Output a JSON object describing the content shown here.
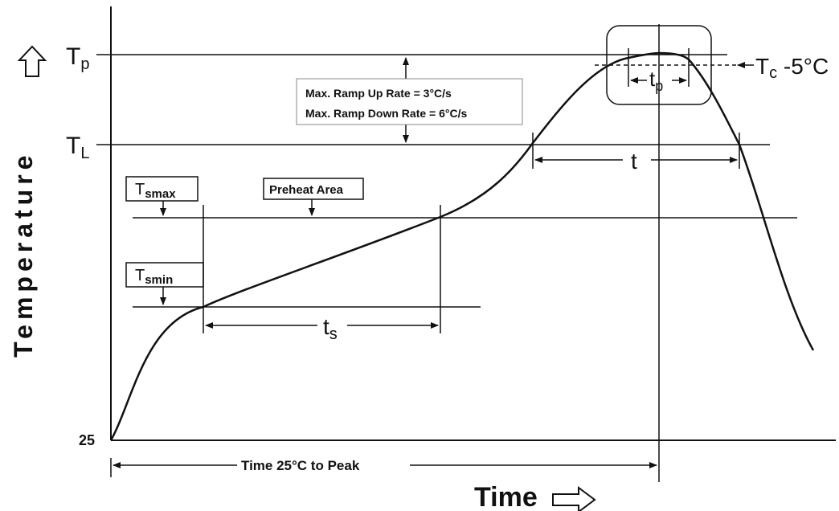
{
  "axes": {
    "y_label": "Temperature",
    "x_label": "Time",
    "y_min_label": "25"
  },
  "levels": {
    "tp": {
      "main": "T",
      "sub": "p"
    },
    "tl": {
      "main": "T",
      "sub": "L"
    },
    "tsmax": {
      "main": "T",
      "sub": "smax"
    },
    "tsmin": {
      "main": "T",
      "sub": "smin"
    },
    "tc": {
      "main": "T",
      "sub": "c",
      "suffix": " -5°C"
    }
  },
  "boxes": {
    "ramp_up": "Max. Ramp Up Rate = 3°C/s",
    "ramp_down": "Max. Ramp Down Rate = 6°C/s",
    "preheat": "Preheat Area"
  },
  "intervals": {
    "ts": {
      "main": "t",
      "sub": "s"
    },
    "t": "t",
    "tp": {
      "main": "t",
      "sub": "p"
    },
    "time_to_peak": "Time 25°C to Peak"
  }
}
